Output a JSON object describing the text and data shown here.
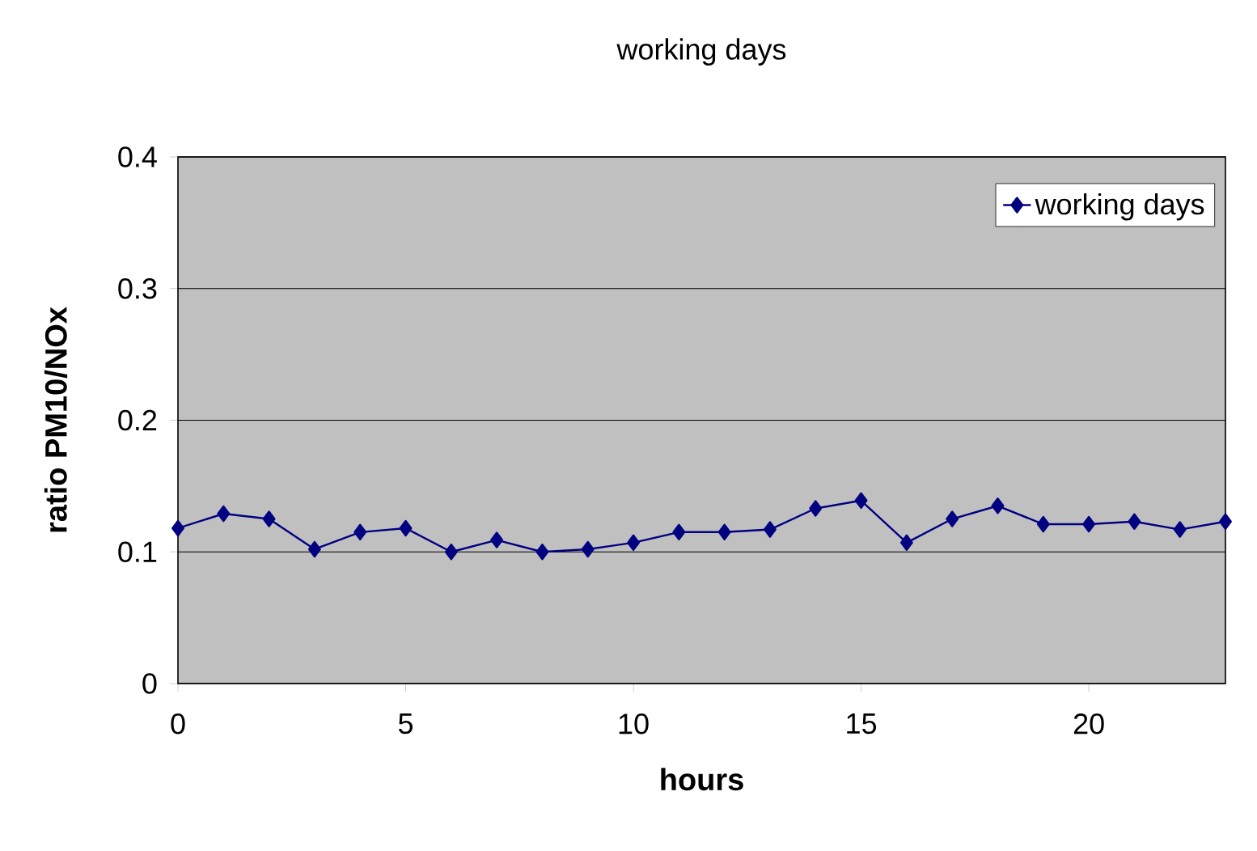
{
  "chart_data": {
    "type": "line",
    "title": "working days",
    "xlabel": "hours",
    "ylabel": "ratio PM10/NOx",
    "x": [
      0,
      1,
      2,
      3,
      4,
      5,
      6,
      7,
      8,
      9,
      10,
      11,
      12,
      13,
      14,
      15,
      16,
      17,
      18,
      19,
      20,
      21,
      22,
      23
    ],
    "series": [
      {
        "name": "working days",
        "color": "#000080",
        "values": [
          0.118,
          0.129,
          0.125,
          0.102,
          0.115,
          0.118,
          0.1,
          0.109,
          0.1,
          0.102,
          0.107,
          0.115,
          0.115,
          0.117,
          0.133,
          0.139,
          0.107,
          0.125,
          0.135,
          0.121,
          0.121,
          0.123,
          0.117,
          0.123
        ]
      }
    ],
    "xlim": [
      0,
      23
    ],
    "xticks": [
      0,
      5,
      10,
      15,
      20
    ],
    "ylim": [
      0,
      0.4
    ],
    "yticks": [
      0,
      0.1,
      0.2,
      0.3,
      0.4
    ],
    "grid": "y",
    "legend": "top right",
    "marker": "diamond",
    "line_style": "solid"
  }
}
